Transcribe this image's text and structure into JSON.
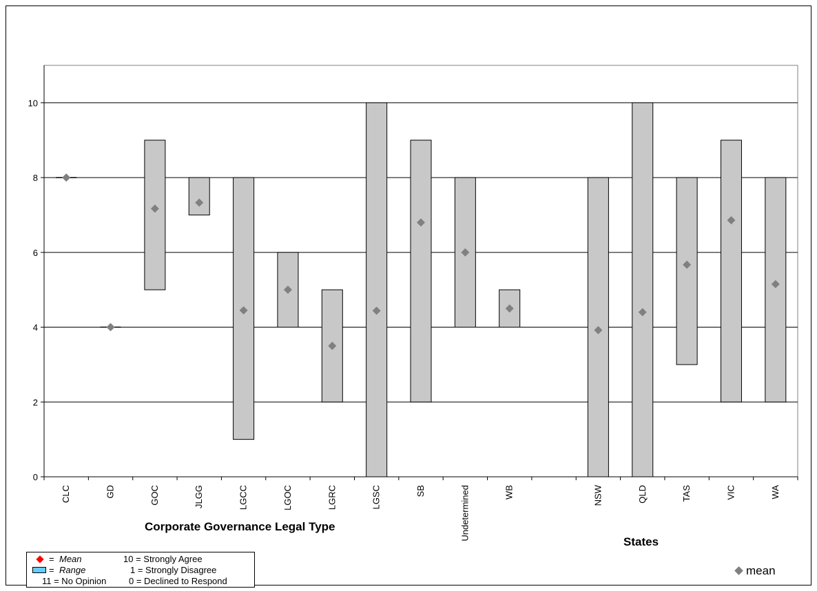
{
  "chart_data": {
    "type": "range-bar",
    "categories": [
      "CLC",
      "GD",
      "GOC",
      "JLGG",
      "LGCC",
      "LGOC",
      "LGRC",
      "LGSC",
      "SB",
      "Undetermined",
      "WB",
      "",
      "NSW",
      "QLD",
      "TAS",
      "VIC",
      "WA"
    ],
    "ranges": [
      {
        "min": 8,
        "max": 8
      },
      {
        "min": 4,
        "max": 4
      },
      {
        "min": 5,
        "max": 9
      },
      {
        "min": 7,
        "max": 8
      },
      {
        "min": 1,
        "max": 8
      },
      {
        "min": 4,
        "max": 6
      },
      {
        "min": 2,
        "max": 5
      },
      {
        "min": 0,
        "max": 10
      },
      {
        "min": 2,
        "max": 9
      },
      {
        "min": 4,
        "max": 8
      },
      {
        "min": 4,
        "max": 5
      },
      null,
      {
        "min": 0,
        "max": 8
      },
      {
        "min": 0,
        "max": 10
      },
      {
        "min": 3,
        "max": 8
      },
      {
        "min": 2,
        "max": 9
      },
      {
        "min": 2,
        "max": 8
      }
    ],
    "means": [
      8.0,
      4.0,
      7.17,
      7.33,
      4.45,
      5.0,
      3.5,
      4.44,
      6.8,
      6.0,
      4.5,
      null,
      3.92,
      4.4,
      5.67,
      6.86,
      5.15
    ],
    "ylim": [
      0,
      11
    ],
    "yticks": [
      0,
      2,
      4,
      6,
      8,
      10
    ],
    "grid": true,
    "group_labels": {
      "left": "Corporate Governance Legal Type",
      "right": "States"
    },
    "series": [
      {
        "name": "mean"
      }
    ],
    "legend": {
      "mean_label": "Mean",
      "range_label": "Range",
      "prefix": "=",
      "scale": [
        "10 = Strongly Agree",
        "1 = Strongly Disagree",
        "11 = No Opinion",
        "0 = Declined to Respond"
      ]
    },
    "colors": {
      "bar": "#c8c8c8",
      "mean_marker": "#808080",
      "legend_mean": "#ff0000",
      "legend_range": "#66ccff"
    }
  }
}
